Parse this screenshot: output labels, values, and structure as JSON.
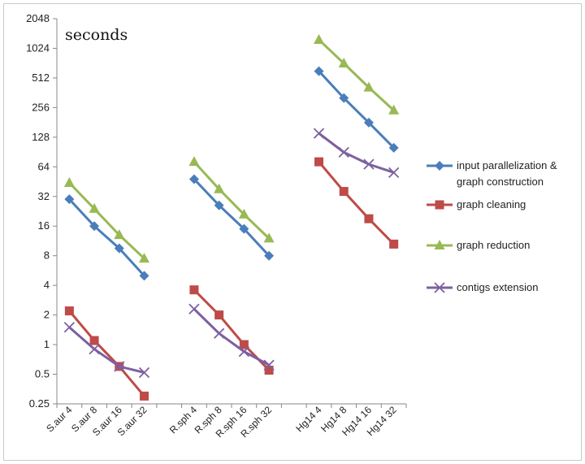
{
  "chart_data": {
    "type": "line",
    "title": "seconds",
    "y_scale": "log2",
    "ylim": [
      0.25,
      2048
    ],
    "y_ticks": [
      "0.25",
      "0.5",
      "1",
      "2",
      "4",
      "8",
      "16",
      "32",
      "64",
      "128",
      "256",
      "512",
      "1024",
      "2048"
    ],
    "groups": [
      [
        "S.aur 4",
        "S.aur 8",
        "S.aur 16",
        "S.aur 32"
      ],
      [
        "R.sph 4",
        "R.sph 8",
        "R.sph 16",
        "R.sph 32"
      ],
      [
        "Hg14 4",
        "Hg14 8",
        "Hg14 16",
        "Hg14 32"
      ]
    ],
    "series": [
      {
        "name": "input parallelization & graph construction",
        "name_lines": [
          "input parallelization &",
          "graph construction"
        ],
        "color": "#4a7ebb",
        "marker": "diamond",
        "values": [
          [
            30,
            16,
            9.5,
            5.0
          ],
          [
            48,
            26,
            15,
            8.0
          ],
          [
            600,
            320,
            180,
            100
          ]
        ]
      },
      {
        "name": "graph cleaning",
        "name_lines": [
          "graph cleaning"
        ],
        "color": "#be4b48",
        "marker": "square",
        "values": [
          [
            2.2,
            1.1,
            0.6,
            0.3
          ],
          [
            3.6,
            2.0,
            1.0,
            0.55
          ],
          [
            72,
            36,
            19,
            10.5
          ]
        ]
      },
      {
        "name": "graph reduction",
        "name_lines": [
          "graph reduction"
        ],
        "color": "#98b954",
        "marker": "triangle",
        "values": [
          [
            44,
            24,
            13,
            7.5
          ],
          [
            72,
            38,
            21,
            12
          ],
          [
            1250,
            720,
            410,
            240
          ]
        ]
      },
      {
        "name": "contigs extension",
        "name_lines": [
          "contigs extension"
        ],
        "color": "#7d60a0",
        "marker": "x",
        "values": [
          [
            1.5,
            0.9,
            0.6,
            0.52
          ],
          [
            2.3,
            1.3,
            0.85,
            0.62
          ],
          [
            140,
            90,
            68,
            56
          ]
        ]
      }
    ],
    "legend_position": "right",
    "grid": false
  }
}
